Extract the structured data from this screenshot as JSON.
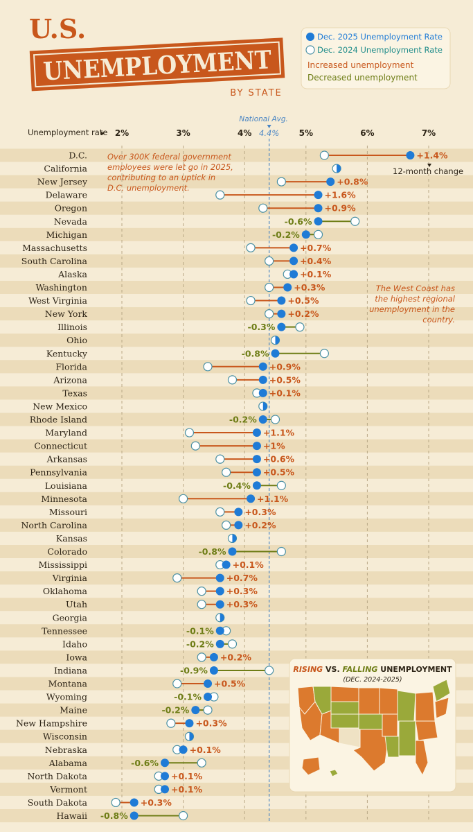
{
  "header": {
    "title_top": "U.S.",
    "title_main": "UNEMPLOYMENT",
    "title_sub": "BY STATE"
  },
  "legend": {
    "dec2025": "Dec. 2025 Unemployment Rate",
    "dec2024": "Dec. 2024 Unemployment Rate",
    "increased": "Increased unemployment",
    "decreased": "Decreased unemployment"
  },
  "colors": {
    "background": "#f6ecd6",
    "stripe": "#ecdcba",
    "dec2025_dot": "#1f7bd6",
    "dec2024_dot": "#ffffff",
    "increase": "#c8571c",
    "decrease": "#6e7d16",
    "title": "#c8571c",
    "text": "#2d2416",
    "national": "#4b86c4",
    "map_rising": "#dc7a2e",
    "map_falling": "#9aa93a",
    "map_flat": "#efe2c4"
  },
  "annotations": {
    "national_avg": "National Avg.",
    "change_note": "12-month change",
    "dc_note": "Over 300K federal government employees were let go in 2025, contributing to an uptick in D.C. unemployment.",
    "westcoast_note": "The West Coast has the highest regional unemployment in the country."
  },
  "inset": {
    "rising": "RISING",
    "vs": " VS. ",
    "falling": "FALLING",
    "rest": " UNEMPLOYMENT",
    "subtitle": "(DEC. 2024-2025)"
  },
  "chart_data": {
    "type": "dumbbell",
    "title": "U.S. Unemployment by State",
    "xlabel": "Unemployment rate",
    "xlim": [
      1.6,
      7.6
    ],
    "ticks": [
      2,
      3,
      4,
      5,
      6,
      7
    ],
    "tick_labels": [
      "2%",
      "3%",
      "4%",
      "5%",
      "6%",
      "7%"
    ],
    "national_avg": 4.4,
    "national_avg_label": "4.4%",
    "series": [
      {
        "name": "Dec. 2025 Unemployment Rate",
        "key": "dec2025"
      },
      {
        "name": "Dec. 2024 Unemployment Rate",
        "key": "dec2024"
      }
    ],
    "states": [
      {
        "name": "D.C.",
        "dec2025": 6.7,
        "dec2024": 5.3,
        "change": "+1.4%"
      },
      {
        "name": "California",
        "dec2025": 5.5,
        "dec2024": 5.5,
        "change": ""
      },
      {
        "name": "New Jersey",
        "dec2025": 5.4,
        "dec2024": 4.6,
        "change": "+0.8%"
      },
      {
        "name": "Delaware",
        "dec2025": 5.2,
        "dec2024": 3.6,
        "change": "+1.6%"
      },
      {
        "name": "Oregon",
        "dec2025": 5.2,
        "dec2024": 4.3,
        "change": "+0.9%"
      },
      {
        "name": "Nevada",
        "dec2025": 5.2,
        "dec2024": 5.8,
        "change": "-0.6%"
      },
      {
        "name": "Michigan",
        "dec2025": 5.0,
        "dec2024": 5.2,
        "change": "-0.2%"
      },
      {
        "name": "Massachusetts",
        "dec2025": 4.8,
        "dec2024": 4.1,
        "change": "+0.7%"
      },
      {
        "name": "South Carolina",
        "dec2025": 4.8,
        "dec2024": 4.4,
        "change": "+0.4%"
      },
      {
        "name": "Alaska",
        "dec2025": 4.8,
        "dec2024": 4.7,
        "change": "+0.1%"
      },
      {
        "name": "Washington",
        "dec2025": 4.7,
        "dec2024": 4.4,
        "change": "+0.3%"
      },
      {
        "name": "West Virginia",
        "dec2025": 4.6,
        "dec2024": 4.1,
        "change": "+0.5%"
      },
      {
        "name": "New York",
        "dec2025": 4.6,
        "dec2024": 4.4,
        "change": "+0.2%"
      },
      {
        "name": "Illinois",
        "dec2025": 4.6,
        "dec2024": 4.9,
        "change": "-0.3%"
      },
      {
        "name": "Ohio",
        "dec2025": 4.5,
        "dec2024": 4.5,
        "change": ""
      },
      {
        "name": "Kentucky",
        "dec2025": 4.5,
        "dec2024": 5.3,
        "change": "-0.8%"
      },
      {
        "name": "Florida",
        "dec2025": 4.3,
        "dec2024": 3.4,
        "change": "+0.9%"
      },
      {
        "name": "Arizona",
        "dec2025": 4.3,
        "dec2024": 3.8,
        "change": "+0.5%"
      },
      {
        "name": "Texas",
        "dec2025": 4.3,
        "dec2024": 4.2,
        "change": "+0.1%"
      },
      {
        "name": "New Mexico",
        "dec2025": 4.3,
        "dec2024": 4.3,
        "change": ""
      },
      {
        "name": "Rhode Island",
        "dec2025": 4.3,
        "dec2024": 4.5,
        "change": "-0.2%"
      },
      {
        "name": "Maryland",
        "dec2025": 4.2,
        "dec2024": 3.1,
        "change": "+1.1%"
      },
      {
        "name": "Connecticut",
        "dec2025": 4.2,
        "dec2024": 3.2,
        "change": "+1%"
      },
      {
        "name": "Arkansas",
        "dec2025": 4.2,
        "dec2024": 3.6,
        "change": "+0.6%"
      },
      {
        "name": "Pennsylvania",
        "dec2025": 4.2,
        "dec2024": 3.7,
        "change": "+0.5%"
      },
      {
        "name": "Louisiana",
        "dec2025": 4.2,
        "dec2024": 4.6,
        "change": "-0.4%"
      },
      {
        "name": "Minnesota",
        "dec2025": 4.1,
        "dec2024": 3.0,
        "change": "+1.1%"
      },
      {
        "name": "Missouri",
        "dec2025": 3.9,
        "dec2024": 3.6,
        "change": "+0.3%"
      },
      {
        "name": "North Carolina",
        "dec2025": 3.9,
        "dec2024": 3.7,
        "change": "+0.2%"
      },
      {
        "name": "Kansas",
        "dec2025": 3.8,
        "dec2024": 3.8,
        "change": ""
      },
      {
        "name": "Colorado",
        "dec2025": 3.8,
        "dec2024": 4.6,
        "change": "-0.8%"
      },
      {
        "name": "Mississippi",
        "dec2025": 3.7,
        "dec2024": 3.6,
        "change": "+0.1%"
      },
      {
        "name": "Virginia",
        "dec2025": 3.6,
        "dec2024": 2.9,
        "change": "+0.7%"
      },
      {
        "name": "Oklahoma",
        "dec2025": 3.6,
        "dec2024": 3.3,
        "change": "+0.3%"
      },
      {
        "name": "Utah",
        "dec2025": 3.6,
        "dec2024": 3.3,
        "change": "+0.3%"
      },
      {
        "name": "Georgia",
        "dec2025": 3.6,
        "dec2024": 3.6,
        "change": ""
      },
      {
        "name": "Tennessee",
        "dec2025": 3.6,
        "dec2024": 3.7,
        "change": "-0.1%"
      },
      {
        "name": "Idaho",
        "dec2025": 3.6,
        "dec2024": 3.8,
        "change": "-0.2%"
      },
      {
        "name": "Iowa",
        "dec2025": 3.5,
        "dec2024": 3.3,
        "change": "+0.2%"
      },
      {
        "name": "Indiana",
        "dec2025": 3.5,
        "dec2024": 4.4,
        "change": "-0.9%"
      },
      {
        "name": "Montana",
        "dec2025": 3.4,
        "dec2024": 2.9,
        "change": "+0.5%"
      },
      {
        "name": "Wyoming",
        "dec2025": 3.4,
        "dec2024": 3.5,
        "change": "-0.1%"
      },
      {
        "name": "Maine",
        "dec2025": 3.2,
        "dec2024": 3.4,
        "change": "-0.2%"
      },
      {
        "name": "New Hampshire",
        "dec2025": 3.1,
        "dec2024": 2.8,
        "change": "+0.3%"
      },
      {
        "name": "Wisconsin",
        "dec2025": 3.1,
        "dec2024": 3.1,
        "change": ""
      },
      {
        "name": "Nebraska",
        "dec2025": 3.0,
        "dec2024": 2.9,
        "change": "+0.1%"
      },
      {
        "name": "Alabama",
        "dec2025": 2.7,
        "dec2024": 3.3,
        "change": "-0.6%"
      },
      {
        "name": "North Dakota",
        "dec2025": 2.7,
        "dec2024": 2.6,
        "change": "+0.1%"
      },
      {
        "name": "Vermont",
        "dec2025": 2.7,
        "dec2024": 2.6,
        "change": "+0.1%"
      },
      {
        "name": "South Dakota",
        "dec2025": 2.2,
        "dec2024": 1.9,
        "change": "+0.3%"
      },
      {
        "name": "Hawaii",
        "dec2025": 2.2,
        "dec2024": 3.0,
        "change": "-0.8%"
      }
    ]
  }
}
